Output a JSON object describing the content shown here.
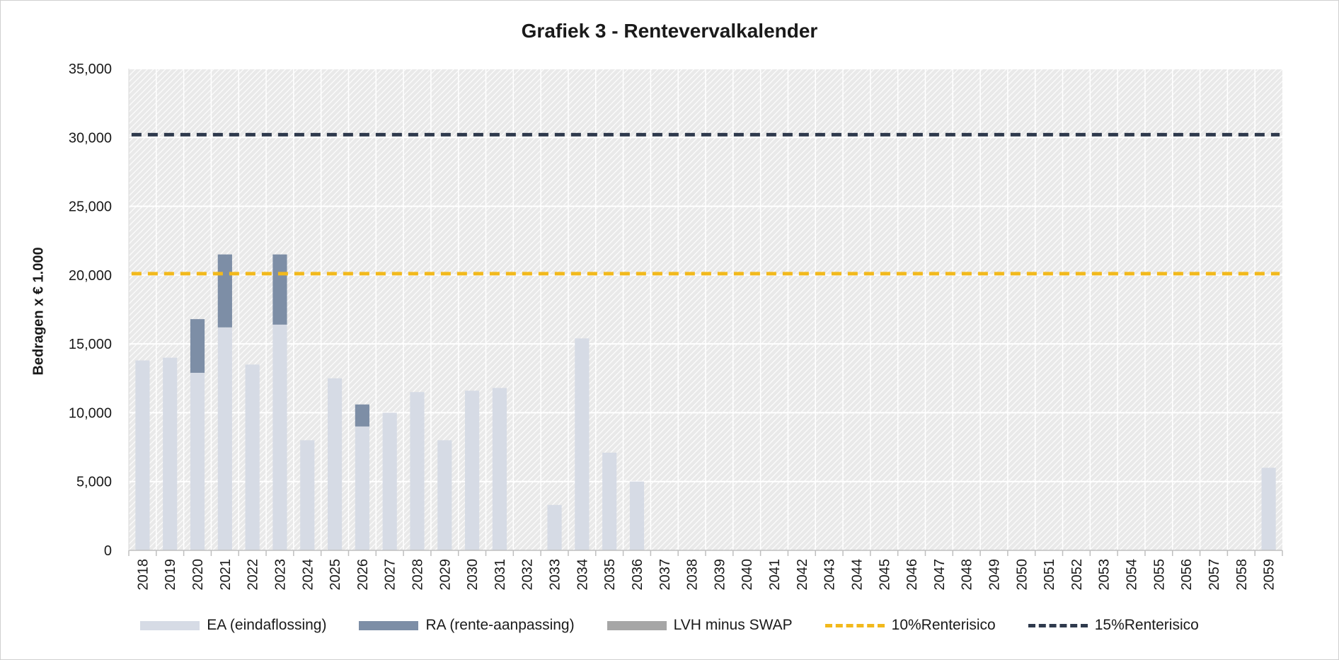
{
  "chart_data": {
    "type": "bar",
    "title": "Grafiek 3 - Rentevervalkalender",
    "ylabel": "Bedragen x € 1.000",
    "xlabel": "",
    "ylim": [
      0,
      35000
    ],
    "yticks": [
      0,
      5000,
      10000,
      15000,
      20000,
      25000,
      30000,
      35000
    ],
    "ytick_labels": [
      "0",
      "5,000",
      "10,000",
      "15,000",
      "20,000",
      "25,000",
      "30,000",
      "35,000"
    ],
    "stacked": true,
    "grid": true,
    "legend_position": "bottom",
    "categories": [
      "2018",
      "2019",
      "2020",
      "2021",
      "2022",
      "2023",
      "2024",
      "2025",
      "2026",
      "2027",
      "2028",
      "2029",
      "2030",
      "2031",
      "2032",
      "2033",
      "2034",
      "2035",
      "2036",
      "2037",
      "2038",
      "2039",
      "2040",
      "2041",
      "2042",
      "2043",
      "2044",
      "2045",
      "2046",
      "2047",
      "2048",
      "2049",
      "2050",
      "2051",
      "2052",
      "2053",
      "2054",
      "2055",
      "2056",
      "2057",
      "2058",
      "2059"
    ],
    "series": [
      {
        "name": "EA (eindaflossing)",
        "kind": "bar",
        "color": "#d6dbe5",
        "values": [
          13800,
          14000,
          12900,
          16200,
          13500,
          16400,
          8000,
          12500,
          9000,
          10000,
          11500,
          8000,
          11600,
          11800,
          0,
          3300,
          15400,
          7100,
          5000,
          0,
          0,
          0,
          0,
          0,
          0,
          0,
          0,
          0,
          0,
          0,
          0,
          0,
          0,
          0,
          0,
          0,
          0,
          0,
          0,
          0,
          0,
          6000
        ]
      },
      {
        "name": "RA (rente-aanpassing)",
        "kind": "bar",
        "color": "#7d8ea6",
        "values": [
          0,
          0,
          3900,
          5300,
          0,
          5100,
          0,
          0,
          1600,
          0,
          0,
          0,
          0,
          0,
          0,
          0,
          0,
          0,
          0,
          0,
          0,
          0,
          0,
          0,
          0,
          0,
          0,
          0,
          0,
          0,
          0,
          0,
          0,
          0,
          0,
          0,
          0,
          0,
          0,
          0,
          0,
          0
        ]
      },
      {
        "name": "LVH minus SWAP",
        "kind": "bar",
        "color": "#a6a6a6",
        "values": [
          0,
          0,
          0,
          0,
          0,
          0,
          0,
          0,
          0,
          0,
          0,
          0,
          0,
          0,
          0,
          0,
          0,
          0,
          0,
          0,
          0,
          0,
          0,
          0,
          0,
          0,
          0,
          0,
          0,
          0,
          0,
          0,
          0,
          0,
          0,
          0,
          0,
          0,
          0,
          0,
          0,
          0
        ]
      },
      {
        "name": "10%Renterisico",
        "kind": "line",
        "style": "dashed",
        "color": "#f2b91c",
        "value": 20100
      },
      {
        "name": "15%Renterisico",
        "kind": "line",
        "style": "dashed",
        "color": "#2f3a4d",
        "value": 30200
      }
    ]
  }
}
